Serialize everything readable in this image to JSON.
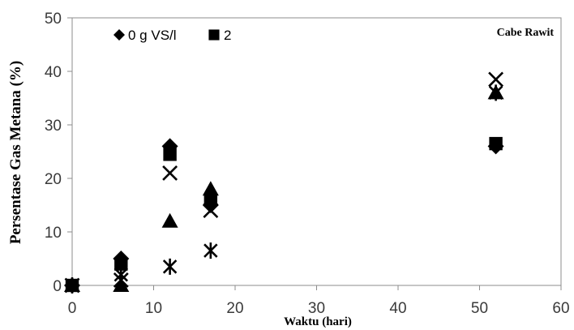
{
  "chart_data": {
    "type": "scatter",
    "title": "",
    "annotation": "Cabe Rawit",
    "xlabel": "Waktu (hari)",
    "ylabel": "Persentase Gas Metana (%)",
    "xlim": [
      0,
      60
    ],
    "ylim": [
      0,
      50
    ],
    "xticks": [
      "0",
      "10",
      "20",
      "30",
      "40",
      "50",
      "60"
    ],
    "yticks": [
      "0",
      "10",
      "20",
      "30",
      "40",
      "50"
    ],
    "grid": false,
    "legend_position": "top-left",
    "series": [
      {
        "name": "0 g VS/l",
        "marker": "diamond",
        "x": [
          0,
          6,
          12,
          17,
          52
        ],
        "y": [
          0,
          5,
          26,
          15,
          26
        ]
      },
      {
        "name": "2",
        "marker": "square",
        "x": [
          0,
          6,
          12,
          17,
          52
        ],
        "y": [
          0,
          4,
          24.5,
          16,
          26.5
        ]
      },
      {
        "marker": "triangle",
        "x": [
          0,
          6,
          12,
          17,
          52
        ],
        "y": [
          0,
          0,
          12,
          18,
          36
        ]
      },
      {
        "marker": "cross",
        "x": [
          0,
          6,
          12,
          17,
          52
        ],
        "y": [
          0,
          1,
          21,
          14,
          38.5
        ]
      },
      {
        "marker": "asterisk",
        "x": [
          0,
          6,
          12,
          17,
          52
        ],
        "y": [
          0,
          2,
          3.5,
          6.5,
          36
        ]
      }
    ]
  }
}
